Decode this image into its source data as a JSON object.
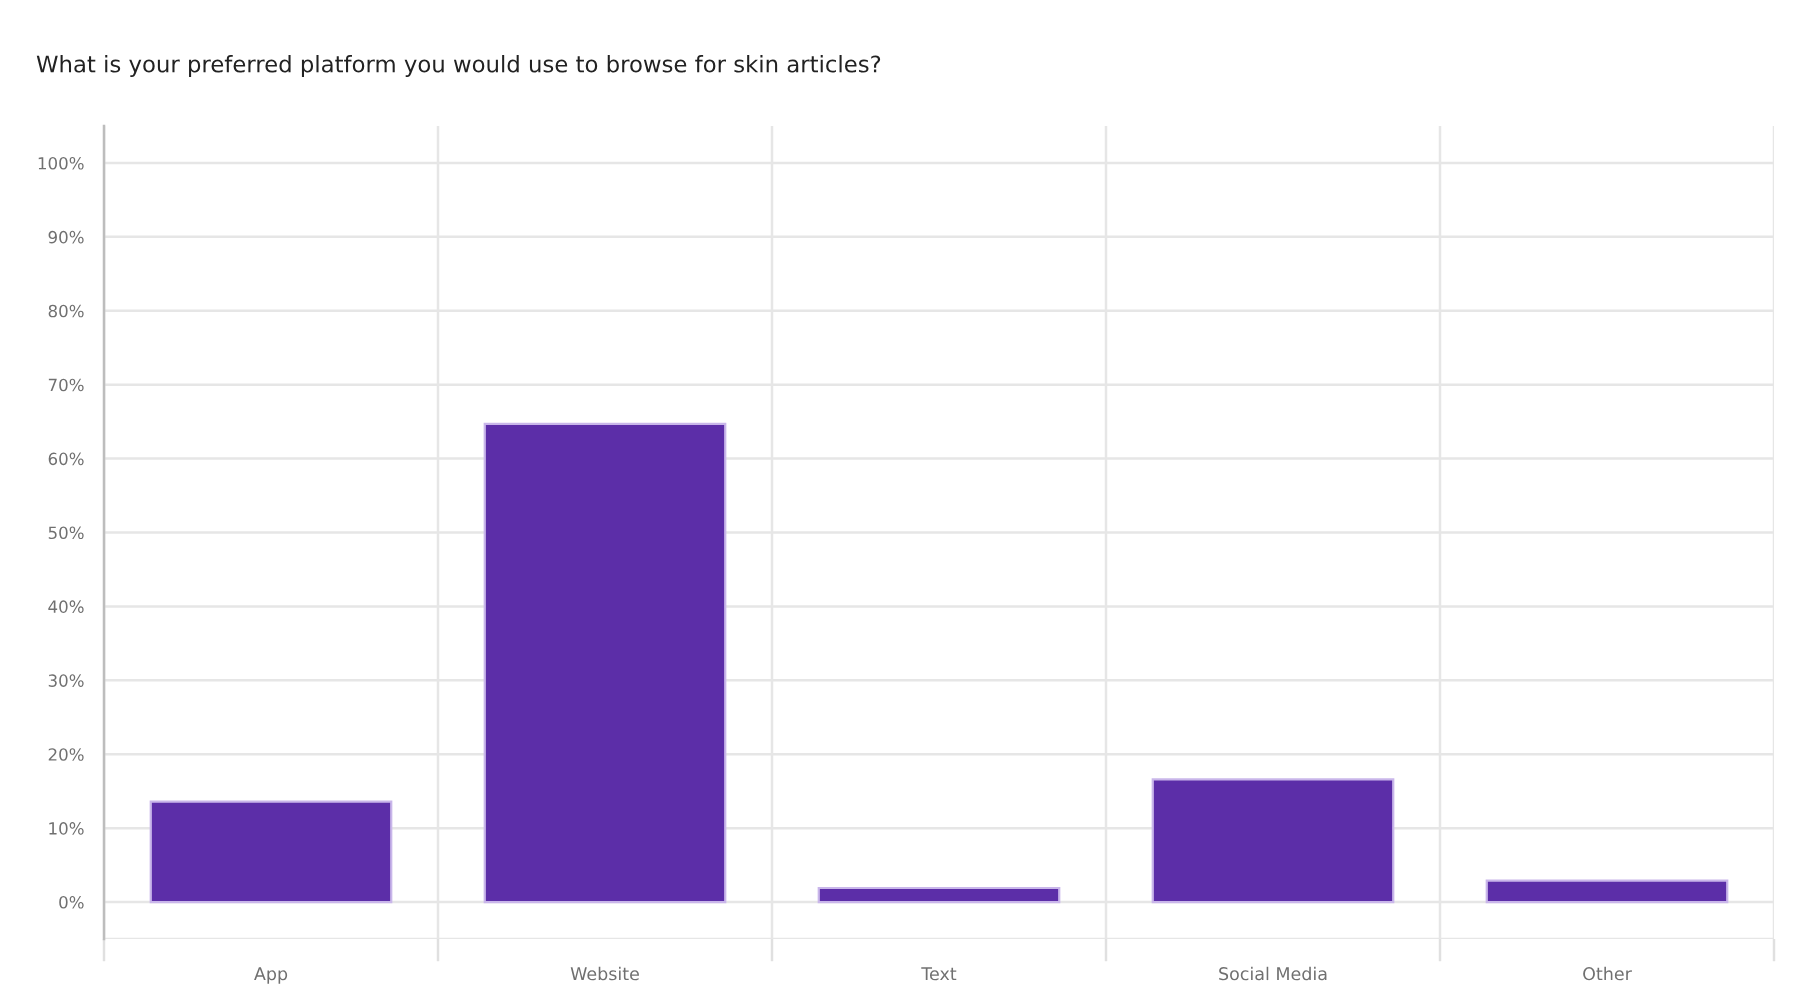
{
  "chart_data": {
    "type": "bar",
    "title": "What is your preferred platform you would use to browse for skin articles?",
    "categories": [
      "App",
      "Website",
      "Text",
      "Social Media",
      "Other"
    ],
    "values": [
      13.6,
      64.7,
      1.9,
      16.6,
      2.9
    ],
    "color": "#5c2ea8",
    "ylim": [
      -5,
      105
    ],
    "yticks": [
      {
        "value": -5,
        "label": null
      },
      {
        "value": 0,
        "label": "0%"
      },
      {
        "value": 10,
        "label": "10%"
      },
      {
        "value": 20,
        "label": "20%"
      },
      {
        "value": 30,
        "label": "30%"
      },
      {
        "value": 40,
        "label": "40%"
      },
      {
        "value": 50,
        "label": "50%"
      },
      {
        "value": 60,
        "label": "60%"
      },
      {
        "value": 70,
        "label": "70%"
      },
      {
        "value": 80,
        "label": "80%"
      },
      {
        "value": 90,
        "label": "90%"
      },
      {
        "value": 100,
        "label": "100%"
      }
    ],
    "grid": true
  }
}
